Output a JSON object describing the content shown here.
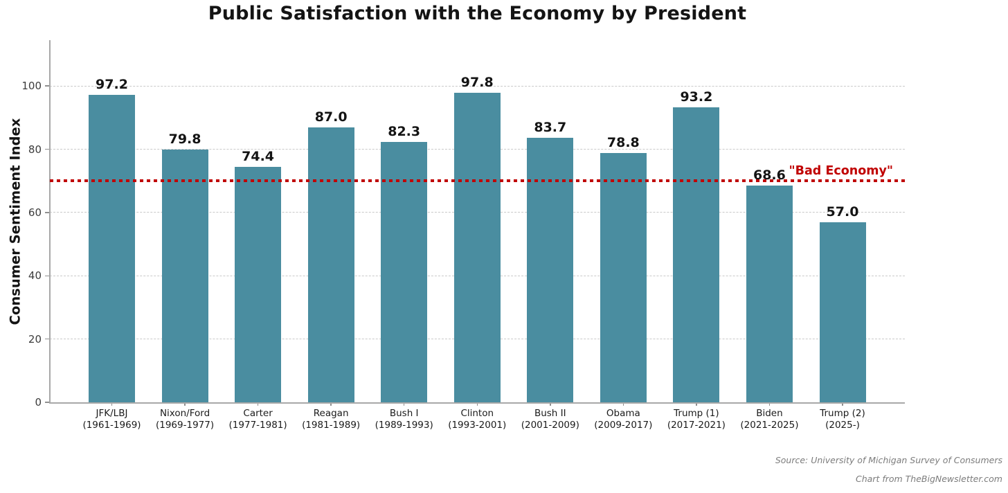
{
  "chart_data": {
    "type": "bar",
    "title": "Public Satisfaction with the Economy by President",
    "ylabel": "Consumer Sentiment Index",
    "xlabel": "",
    "categories": [
      "JFK/LBJ",
      "Nixon/Ford",
      "Carter",
      "Reagan",
      "Bush I",
      "Clinton",
      "Bush II",
      "Obama",
      "Trump (1)",
      "Biden",
      "Trump (2)"
    ],
    "category_terms": [
      "(1961-1969)",
      "(1969-1977)",
      "(1977-1981)",
      "(1981-1989)",
      "(1989-1993)",
      "(1993-2001)",
      "(2001-2009)",
      "(2009-2017)",
      "(2017-2021)",
      "(2021-2025)",
      "(2025-)"
    ],
    "values": [
      97.2,
      79.8,
      74.4,
      87.0,
      82.3,
      97.8,
      83.7,
      78.8,
      93.2,
      68.6,
      57.0
    ],
    "yticks": [
      0,
      20,
      40,
      60,
      80,
      100
    ],
    "ylim": [
      0,
      114.5
    ],
    "grid": "horizontal-dashed",
    "legend": "none",
    "bar_color": "#4a8da0",
    "reference_line": {
      "value": 70,
      "label": "\"Bad Economy\"",
      "color": "#c00000",
      "style": "dotted"
    }
  },
  "footer": {
    "source": "Source: University of Michigan Survey of Consumers",
    "credit": "Chart from TheBigNewsletter.com"
  }
}
